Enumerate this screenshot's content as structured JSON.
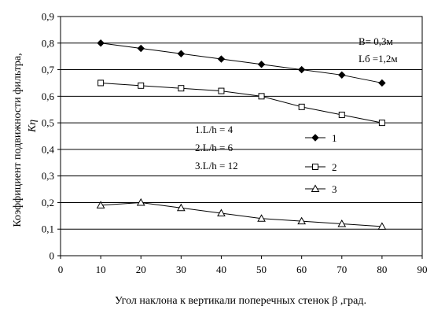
{
  "chart_data": {
    "type": "line",
    "xlabel": "Угол наклона к вертикали поперечных стенок β ,град.",
    "ylabel_line1": "Коэффициент подвижности фильтра,",
    "ylabel_line2": "Кη",
    "xlim": [
      0,
      90
    ],
    "ylim": [
      0,
      0.9
    ],
    "x_ticks": [
      "0",
      "10",
      "20",
      "30",
      "40",
      "50",
      "60",
      "70",
      "80",
      "90"
    ],
    "y_ticks": [
      "0",
      "0,1",
      "0,2",
      "0,3",
      "0,4",
      "0,5",
      "0,6",
      "0,7",
      "0,8",
      "0,9"
    ],
    "grid": "horizontal",
    "x": [
      10,
      20,
      30,
      40,
      50,
      60,
      70,
      80
    ],
    "series": [
      {
        "name": "1",
        "marker": "diamond",
        "color": "#000000",
        "values": [
          0.8,
          0.78,
          0.76,
          0.74,
          0.72,
          0.7,
          0.68,
          0.65
        ]
      },
      {
        "name": "2",
        "marker": "square",
        "color": "#000000",
        "values": [
          0.65,
          0.64,
          0.63,
          0.62,
          0.6,
          0.56,
          0.53,
          0.5
        ]
      },
      {
        "name": "3",
        "marker": "triangle",
        "color": "#000000",
        "values": [
          0.19,
          0.2,
          0.18,
          0.16,
          0.14,
          0.13,
          0.12,
          0.11
        ]
      }
    ],
    "legend_placement": "right",
    "annotations": {
      "params": [
        "B= 0,3м",
        "Lб =1,2м"
      ],
      "cases": [
        "1.L/h = 4",
        "2.L/h = 6",
        "3.L/h = 12"
      ]
    }
  }
}
